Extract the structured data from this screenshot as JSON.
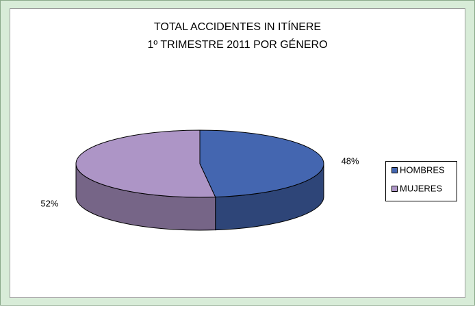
{
  "chart_data": {
    "type": "pie",
    "title": "TOTAL ACCIDENTES IN ITÍNERE",
    "subtitle": "1º TRIMESTRE 2011 POR GÉNERO",
    "categories": [
      "HOMBRES",
      "MUJERES"
    ],
    "values": [
      48,
      52
    ],
    "value_labels": [
      "48%",
      "52%"
    ],
    "colors": [
      "#4466b0",
      "#ad95c6"
    ],
    "legend": "right"
  }
}
